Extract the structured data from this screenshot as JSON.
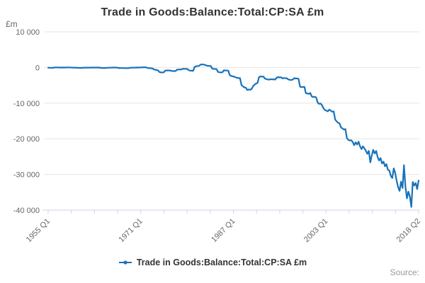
{
  "colors": {
    "line": "#1772ba",
    "grid": "#e6e6e6",
    "axis": "#ccd6eb",
    "text_dark": "#333333",
    "text_gray": "#666666",
    "text_light": "#999999",
    "background": "#ffffff"
  },
  "footer": {
    "source_label": "Source:"
  },
  "chart_data": {
    "type": "line",
    "title": "Trade in Goods:Balance:Total:CP:SA £m",
    "ylabel": "£m",
    "xlabel": "",
    "ylim": [
      -40000,
      10000
    ],
    "grid": true,
    "legend_position": "bottom",
    "x_range": [
      "1955 Q1",
      "2018 Q2"
    ],
    "x_unit": "quarter",
    "x_tick_count": 17,
    "x_labeled_ticks": [
      {
        "index": 0,
        "label": "1955 Q1"
      },
      {
        "index": 4,
        "label": "1971 Q1"
      },
      {
        "index": 8,
        "label": "1987 Q1"
      },
      {
        "index": 12,
        "label": "2003 Q1"
      },
      {
        "index": 16,
        "label": "2018 Q2"
      }
    ],
    "y_tick_values": [
      10000,
      0,
      -10000,
      -20000,
      -30000,
      -40000
    ],
    "y_tick_labels": [
      "10 000",
      "0",
      "-10 000",
      "-20 000",
      "-30 000",
      "-40 000"
    ],
    "series": [
      {
        "name": "Trade in Goods:Balance:Total:CP:SA £m",
        "start": "1955 Q1",
        "values": [
          -60,
          -85,
          -75,
          -90,
          -20,
          10,
          25,
          5,
          -10,
          -15,
          -5,
          -12,
          15,
          8,
          12,
          10,
          -20,
          -30,
          -35,
          -30,
          -80,
          -100,
          -110,
          -105,
          -45,
          -35,
          -40,
          -35,
          -30,
          -25,
          -22,
          -28,
          -15,
          -20,
          -25,
          -22,
          -110,
          -125,
          -140,
          -135,
          -70,
          -55,
          -60,
          -55,
          -25,
          -15,
          -20,
          -15,
          -130,
          -145,
          -160,
          -165,
          -185,
          -180,
          -175,
          -172,
          -60,
          -50,
          -45,
          -55,
          -10,
          -5,
          -12,
          -8,
          40,
          55,
          50,
          45,
          -140,
          -170,
          -195,
          -245,
          -480,
          -610,
          -700,
          -795,
          -1260,
          -1360,
          -1400,
          -1330,
          -860,
          -820,
          -845,
          -808,
          -930,
          -990,
          -1020,
          -989,
          -620,
          -575,
          -545,
          -544,
          -360,
          -385,
          -400,
          -397,
          -750,
          -870,
          -900,
          -929,
          150,
          340,
          420,
          443,
          780,
          900,
          820,
          751,
          560,
          480,
          440,
          431,
          -280,
          -380,
          -420,
          -457,
          -1250,
          -1340,
          -1390,
          -1356,
          -780,
          -840,
          -860,
          -865,
          -2150,
          -2350,
          -2480,
          -2579,
          -2750,
          -2900,
          -2980,
          -2952,
          -4900,
          -5300,
          -5600,
          -5680,
          -6300,
          -6150,
          -6250,
          -5983,
          -5200,
          -4800,
          -4500,
          -4309,
          -2700,
          -2500,
          -2550,
          -2534,
          -3100,
          -3250,
          -3350,
          -3404,
          -3250,
          -3350,
          -3300,
          -3419,
          -2850,
          -2700,
          -2800,
          -2741,
          -3050,
          -2950,
          -3000,
          -3023,
          -3350,
          -3450,
          -3500,
          -3422,
          -3000,
          -3100,
          -3050,
          -3192,
          -5400,
          -5500,
          -5450,
          -5463,
          -7200,
          -7300,
          -7400,
          -7151,
          -8100,
          -8300,
          -8200,
          -8376,
          -9800,
          -10200,
          -10100,
          -10548,
          -11400,
          -11900,
          -12100,
          -12305,
          -11800,
          -12100,
          -12400,
          -12307,
          -14600,
          -15100,
          -15500,
          -15695,
          -16800,
          -17100,
          -17400,
          -17253,
          -19800,
          -20300,
          -20500,
          -20400,
          -20900,
          -21800,
          -21000,
          -21600,
          -20800,
          -22100,
          -22900,
          -22100,
          -22700,
          -23400,
          -24200,
          -23400,
          -26600,
          -24700,
          -23100,
          -24100,
          -23400,
          -25100,
          -26100,
          -25400,
          -26900,
          -26400,
          -27700,
          -27100,
          -28700,
          -28900,
          -30400,
          -31000,
          -28300,
          -29600,
          -31800,
          -33600,
          -34600,
          -32000,
          -33800,
          -27400,
          -33500,
          -36700,
          -34800,
          -36200,
          -39100,
          -32100,
          -33100,
          -32400,
          -34100,
          -31700
        ]
      }
    ]
  }
}
